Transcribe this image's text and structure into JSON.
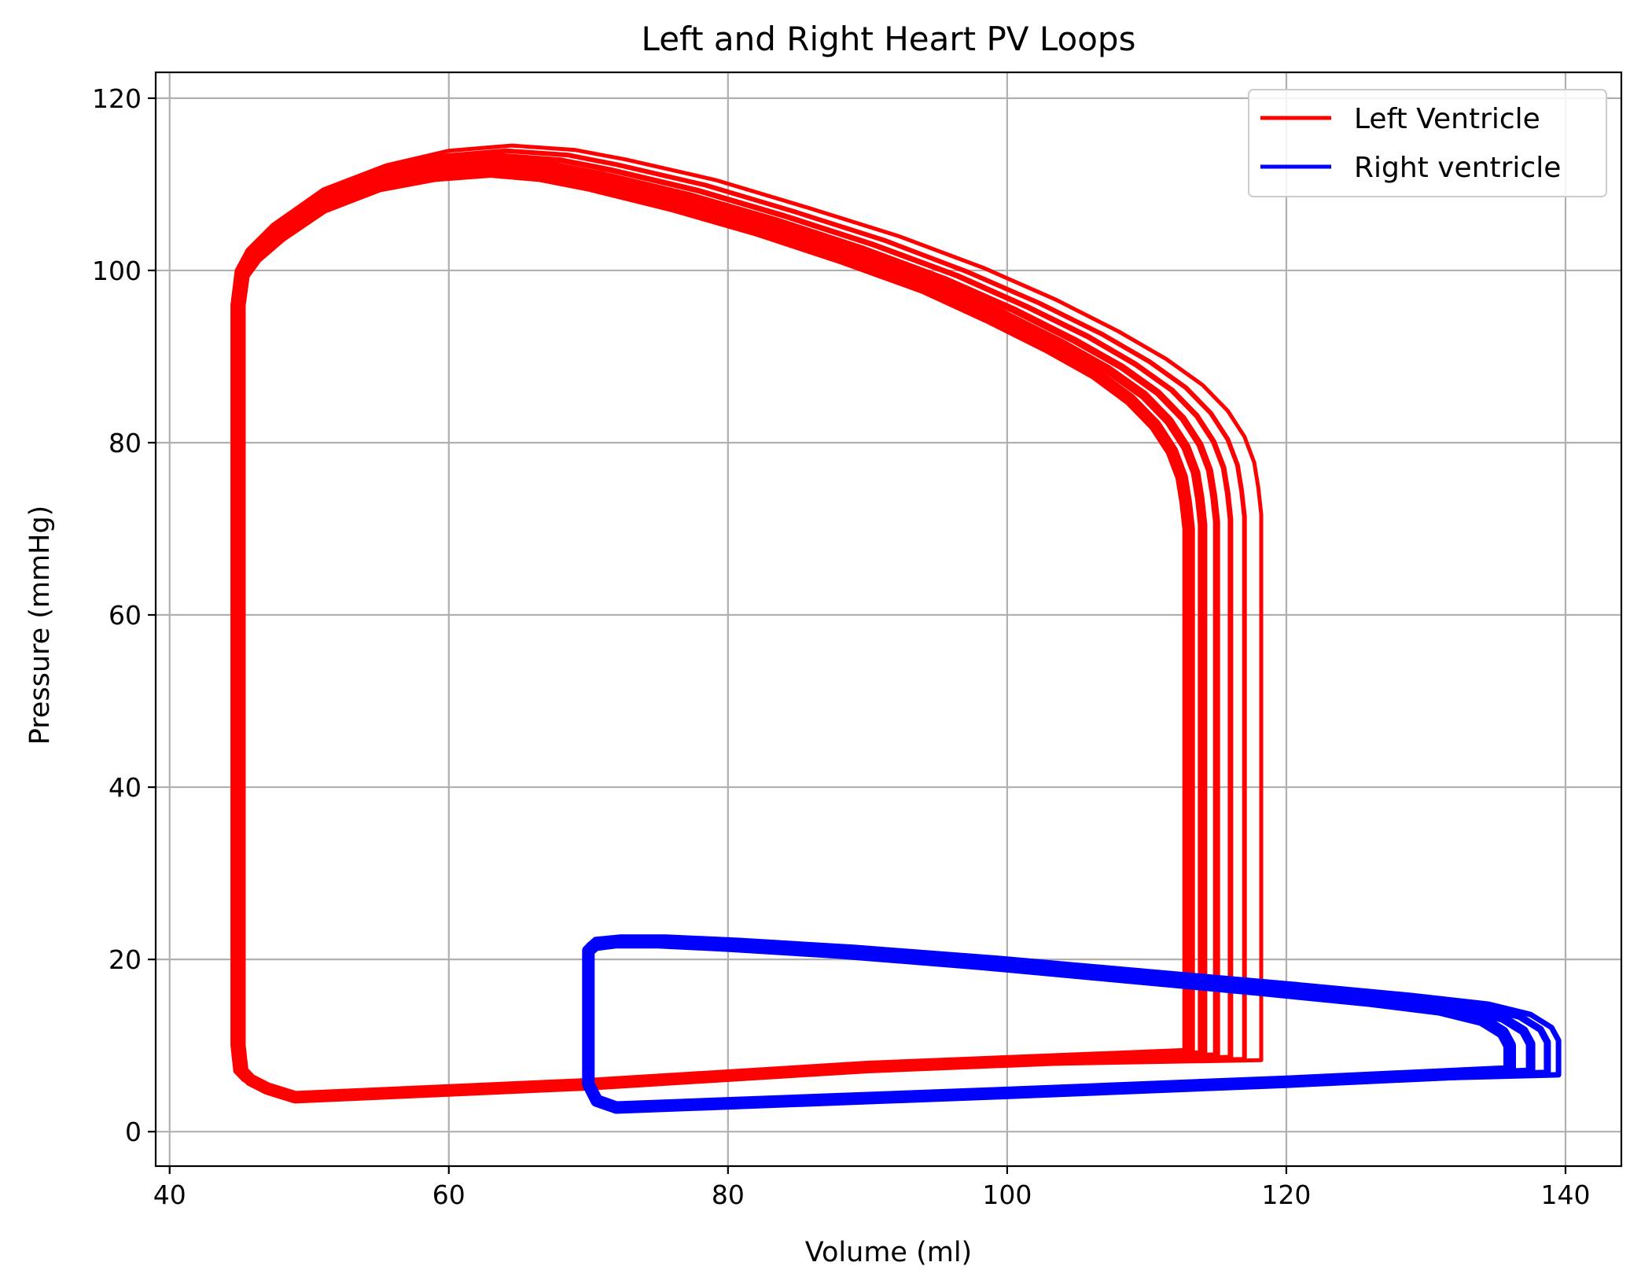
{
  "chart_data": {
    "type": "line",
    "title": "Left and Right Heart PV Loops",
    "xlabel": "Volume (ml)",
    "ylabel": "Pressure (mmHg)",
    "xlim": [
      39,
      144
    ],
    "ylim": [
      -4,
      123
    ],
    "xticks": [
      40,
      60,
      80,
      100,
      120,
      140
    ],
    "yticks": [
      0,
      20,
      40,
      60,
      80,
      100,
      120
    ],
    "grid": true,
    "legend_position": "top-right",
    "series": [
      {
        "name": "Left Ventricle",
        "color": "#ff0000",
        "loops": [
          {
            "x": [
              113,
              113,
              112.8,
              112.5,
              111.8,
              110.6,
              108.8,
              106.3,
              103,
              98.7,
              94,
              88,
              82,
              76,
              70,
              66.5,
              63,
              59,
              55,
              51,
              48,
              46.2,
              45.3,
              45,
              45,
              45,
              45,
              45,
              45,
              45.2,
              45.8,
              47,
              49,
              70,
              90,
              113
            ],
            "y": [
              9,
              70,
              73,
              76,
              79,
              82,
              85,
              88,
              91,
              94.5,
              98,
              101.5,
              104.7,
              107.5,
              109.9,
              111,
              111.5,
              111,
              109.8,
              107.3,
              104,
              101.5,
              99.5,
              96,
              80,
              60,
              40,
              20,
              10,
              7,
              6,
              5,
              4,
              5.5,
              7.5,
              9
            ]
          },
          {
            "x": [
              114,
              114,
              113.8,
              113.5,
              112.8,
              111.6,
              109.8,
              107.2,
              103.9,
              99.6,
              94.8,
              88.8,
              82.7,
              76.6,
              70.5,
              67,
              63.2,
              59.1,
              55,
              51,
              47.8,
              46,
              45.2,
              44.9,
              44.9,
              44.9,
              44.9,
              44.9,
              44.9,
              45.1,
              45.7,
              46.9,
              48.9,
              70,
              90,
              114
            ],
            "y": [
              8.9,
              70.5,
              73.5,
              76.5,
              79.5,
              82.5,
              85.5,
              88.5,
              91.5,
              95,
              98.5,
              102,
              105.3,
              108.1,
              110.5,
              111.6,
              112.1,
              111.6,
              110.3,
              107.8,
              104.2,
              101.6,
              99.6,
              96,
              80,
              60,
              40,
              20,
              10,
              7,
              6,
              5,
              4,
              5.5,
              7.5,
              8.9
            ]
          },
          {
            "x": [
              115,
              115,
              114.8,
              114.5,
              113.8,
              112.6,
              110.8,
              108.2,
              104.8,
              100.5,
              95.6,
              89.6,
              83.4,
              77.2,
              71,
              67.5,
              63.5,
              59.3,
              55.1,
              51,
              47.7,
              45.9,
              45.1,
              44.8,
              44.8,
              44.8,
              44.8,
              44.8,
              44.8,
              45,
              45.6,
              46.8,
              48.8,
              70,
              90,
              115
            ],
            "y": [
              8.8,
              70.8,
              73.8,
              76.8,
              79.8,
              82.8,
              85.8,
              88.8,
              91.9,
              95.4,
              98.9,
              102.5,
              105.8,
              108.7,
              111.1,
              112.2,
              112.7,
              112.2,
              110.8,
              108.2,
              104.5,
              101.8,
              99.7,
              96,
              80,
              60,
              40,
              20,
              10,
              7,
              6,
              5,
              4,
              5.5,
              7.5,
              8.8
            ]
          },
          {
            "x": [
              116,
              116,
              115.8,
              115.5,
              114.8,
              113.6,
              111.8,
              109.2,
              105.8,
              101.4,
              96.4,
              90.4,
              84.1,
              77.8,
              71.5,
              68,
              63.8,
              59.5,
              55.2,
              51,
              47.6,
              45.8,
              45,
              44.7,
              44.7,
              44.7,
              44.7,
              44.7,
              44.7,
              44.9,
              45.5,
              46.7,
              48.7,
              70,
              90,
              116
            ],
            "y": [
              8.6,
              71.1,
              74.1,
              77.1,
              80.1,
              83.1,
              86.1,
              89.1,
              92.3,
              95.8,
              99.4,
              103,
              106.3,
              109.3,
              111.7,
              112.8,
              113.3,
              112.8,
              111.3,
              108.6,
              104.8,
              102,
              99.8,
              96,
              80,
              60,
              40,
              20,
              10,
              7,
              6,
              5,
              4,
              5.5,
              7.5,
              8.6
            ]
          },
          {
            "x": [
              117,
              117,
              116.8,
              116.5,
              115.8,
              114.6,
              112.8,
              110.2,
              106.8,
              102.3,
              97.2,
              91.2,
              84.8,
              78.4,
              72,
              68.5,
              64.1,
              59.7,
              55.3,
              51,
              47.5,
              45.7,
              44.9,
              44.6,
              44.6,
              44.6,
              44.6,
              44.6,
              44.6,
              44.8,
              45.4,
              46.6,
              48.6,
              70,
              90,
              117
            ],
            "y": [
              8.4,
              71.4,
              74.4,
              77.4,
              80.4,
              83.4,
              86.4,
              89.4,
              92.6,
              96.2,
              99.8,
              103.5,
              106.8,
              109.9,
              112.3,
              113.4,
              113.9,
              113.3,
              111.7,
              109,
              105,
              102.2,
              99.9,
              96,
              80,
              60,
              40,
              20,
              10,
              7,
              6,
              5,
              4,
              5.5,
              7.5,
              8.4
            ]
          },
          {
            "x": [
              118.2,
              118.2,
              118,
              117.7,
              117,
              115.8,
              114,
              111.4,
              108,
              103.5,
              98.3,
              92.2,
              85.7,
              79.1,
              72.6,
              69,
              64.5,
              60,
              55.5,
              51,
              47.4,
              45.6,
              44.8,
              44.5,
              44.5,
              44.5,
              44.5,
              44.5,
              44.5,
              44.7,
              45.3,
              46.5,
              48.5,
              70,
              90,
              118.2
            ],
            "y": [
              8.3,
              71.7,
              74.7,
              77.7,
              80.7,
              83.7,
              86.7,
              89.7,
              92.9,
              96.6,
              100.3,
              104,
              107.3,
              110.5,
              112.9,
              114,
              114.5,
              113.9,
              112.2,
              109.4,
              105.3,
              102.4,
              100,
              96,
              80,
              60,
              40,
              20,
              10,
              7,
              6,
              5,
              4,
              5.5,
              7.5,
              8.3
            ]
          }
        ]
      },
      {
        "name": "Right ventricle",
        "color": "#0000ff",
        "loops": [
          {
            "x": [
              136,
              136,
              135.5,
              134,
              131,
              126,
              118,
              108,
              98,
              88,
              80,
              75,
              72,
              70.5,
              70,
              70,
              70,
              70,
              70.6,
              72,
              100,
              120,
              136
            ],
            "y": [
              7,
              10,
              11.5,
              13,
              14.2,
              15.2,
              16.5,
              18,
              19.5,
              20.8,
              21.6,
              22,
              22,
              21.7,
              21,
              15,
              10,
              5.5,
              3.6,
              2.8,
              4.5,
              5.8,
              7
            ]
          },
          {
            "x": [
              137.5,
              137.5,
              137,
              135.5,
              132.5,
              127.2,
              119,
              108.8,
              98.6,
              88.4,
              80.3,
              75.2,
              72.1,
              70.5,
              70,
              70,
              70,
              70,
              70.6,
              72,
              100,
              120,
              137.5
            ],
            "y": [
              6.9,
              10.2,
              11.7,
              13.2,
              14.4,
              15.4,
              16.7,
              18.2,
              19.7,
              21,
              21.8,
              22.2,
              22.2,
              21.9,
              21.2,
              15,
              10,
              5.5,
              3.6,
              2.8,
              4.5,
              5.8,
              6.9
            ]
          },
          {
            "x": [
              138.7,
              138.7,
              138.2,
              136.7,
              133.7,
              128.3,
              119.9,
              109.5,
              99.1,
              88.8,
              80.6,
              75.4,
              72.2,
              70.5,
              70,
              70,
              70,
              70,
              70.6,
              72,
              100,
              120,
              138.7
            ],
            "y": [
              6.8,
              10.4,
              11.9,
              13.4,
              14.6,
              15.6,
              16.9,
              18.4,
              19.9,
              21.2,
              22,
              22.4,
              22.4,
              22.1,
              21.4,
              15,
              10,
              5.5,
              3.6,
              2.8,
              4.5,
              5.8,
              6.8
            ]
          },
          {
            "x": [
              139.5,
              139.5,
              139,
              137.5,
              134.5,
              129,
              120.5,
              110,
              99.5,
              89,
              80.8,
              75.5,
              72.3,
              70.5,
              70,
              70,
              70,
              70,
              70.6,
              72,
              100,
              120,
              139.5
            ],
            "y": [
              6.6,
              10.6,
              12.1,
              13.6,
              14.8,
              15.8,
              17.1,
              18.6,
              20.1,
              21.4,
              22.2,
              22.6,
              22.6,
              22.3,
              21.6,
              15,
              10,
              5.5,
              3.6,
              2.8,
              4.5,
              5.8,
              6.6
            ]
          }
        ]
      }
    ]
  }
}
